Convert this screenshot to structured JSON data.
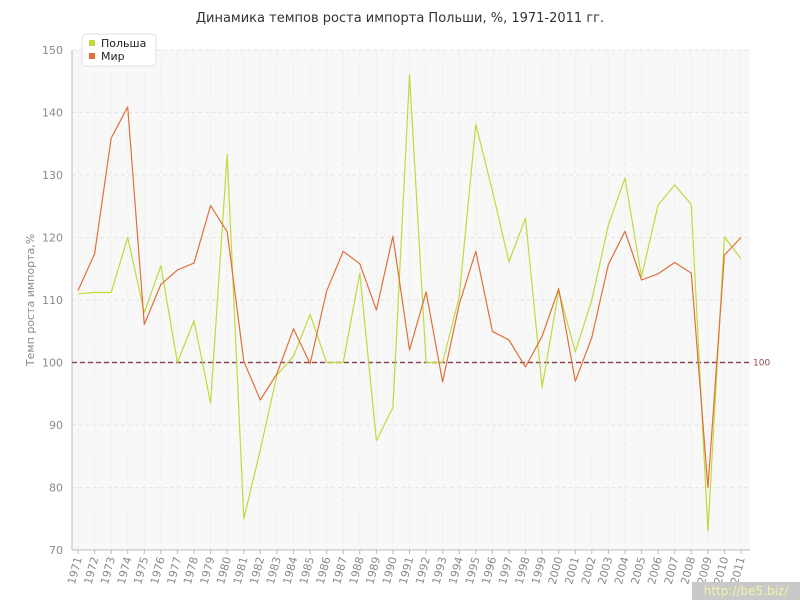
{
  "chart_data": {
    "type": "line",
    "title": "Динамика темпов роста импорта Польши, %, 1971-2011 гг.",
    "ylabel": "Темп роста импорта,%",
    "xlabel": "",
    "ylim": [
      70,
      150
    ],
    "yticks": [
      70,
      80,
      90,
      100,
      110,
      120,
      130,
      140,
      150
    ],
    "grid": true,
    "legend_position": "top-left",
    "categories": [
      "1971",
      "1972",
      "1973",
      "1974",
      "1975",
      "1976",
      "1977",
      "1978",
      "1979",
      "1980",
      "1981",
      "1982",
      "1983",
      "1984",
      "1985",
      "1986",
      "1987",
      "1988",
      "1989",
      "1990",
      "1991",
      "1992",
      "1993",
      "1994",
      "1995",
      "1996",
      "1997",
      "1998",
      "1999",
      "2000",
      "2001",
      "2002",
      "2003",
      "2004",
      "2005",
      "2006",
      "2007",
      "2008",
      "2009",
      "2010",
      "2011"
    ],
    "reference_line": {
      "value": 100,
      "label": "100",
      "color": "#8b4a52"
    },
    "series": [
      {
        "name": "Польша",
        "color": "#bddc3c",
        "values": [
          111,
          111.2,
          111.2,
          120,
          108,
          115.5,
          100,
          106.7,
          93.5,
          133.3,
          75,
          86,
          98,
          101,
          107.7,
          100,
          100,
          114.3,
          87.5,
          92.8,
          146,
          100,
          100,
          110.5,
          138.1,
          127.5,
          116.1,
          123.1,
          96,
          111.5,
          101.7,
          110,
          122,
          129.5,
          113.7,
          125.2,
          128.4,
          125.3,
          73,
          120.1,
          116.6
        ]
      },
      {
        "name": "Мир",
        "color": "#e0703a",
        "values": [
          111.5,
          117.4,
          135.9,
          140.9,
          106.1,
          112.5,
          114.8,
          115.9,
          125.1,
          120.9,
          100.2,
          94,
          98.2,
          105.4,
          99.8,
          111.4,
          117.8,
          115.8,
          108.4,
          120.2,
          102,
          111.3,
          96.9,
          109.3,
          117.8,
          105,
          103.6,
          99.3,
          104.2,
          111.8,
          97,
          104,
          115.7,
          121,
          113.2,
          114.2,
          116,
          114.3,
          80,
          117.2,
          120
        ]
      }
    ]
  },
  "watermark": "http://be5.biz/"
}
